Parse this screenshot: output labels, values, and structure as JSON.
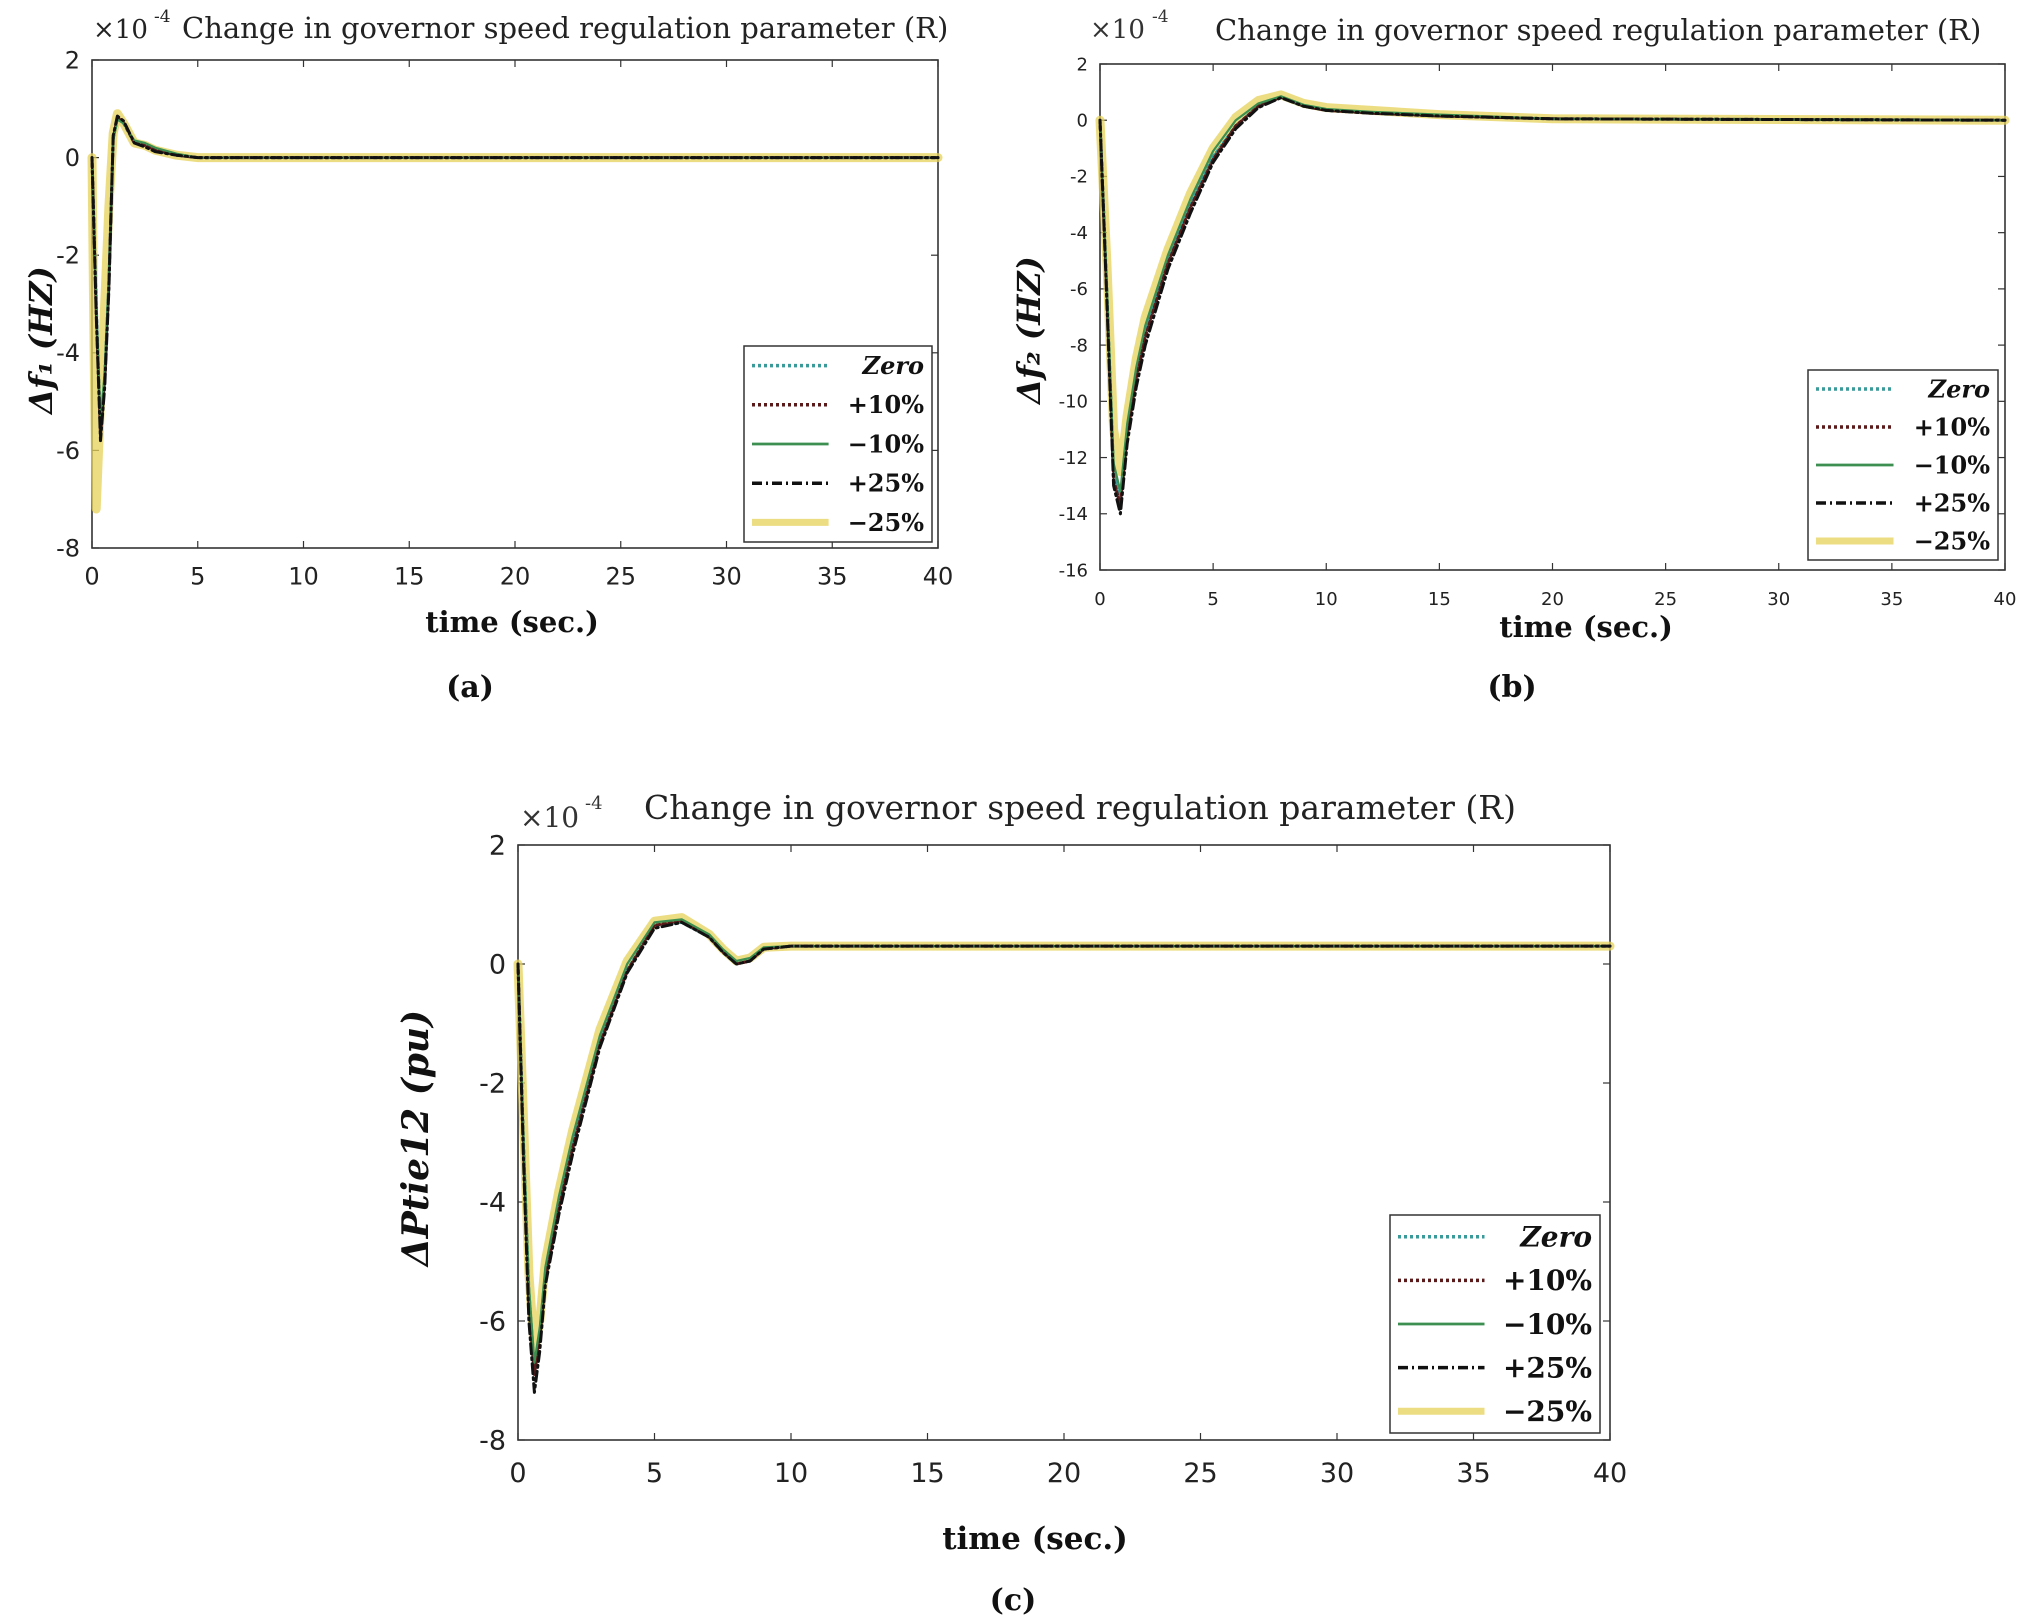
{
  "chart_data": [
    {
      "id": "a",
      "type": "line",
      "title": "Change in governor speed regulation parameter (R)",
      "exponent_prefix": "×10",
      "exponent": "-4",
      "xlabel": "time (sec.)",
      "ylabel": "Δf₁ (HZ)",
      "caption": "(a)",
      "xlim": [
        0,
        40
      ],
      "ylim": [
        -8,
        2
      ],
      "xticks": [
        "0",
        "5",
        "10",
        "15",
        "20",
        "25",
        "30",
        "35",
        "40"
      ],
      "yticks": [
        "2",
        "0",
        "-2",
        "-4",
        "-6",
        "-8"
      ],
      "legend": [
        "Zero",
        "+10%",
        "−10%",
        "+25%",
        "−25%"
      ],
      "series": [
        {
          "name": "Zero",
          "color": "#3a9a9a",
          "style": "dotted",
          "x": [
            0,
            0.2,
            0.4,
            0.6,
            0.8,
            1.0,
            1.2,
            1.5,
            2,
            2.5,
            3,
            4,
            5,
            40
          ],
          "y": [
            0,
            -3,
            -5.6,
            -4.5,
            -2.5,
            0.4,
            0.8,
            0.7,
            0.3,
            0.25,
            0.15,
            0.05,
            0,
            0
          ]
        },
        {
          "name": "+10%",
          "color": "#5a1a1a",
          "style": "dotted",
          "x": [
            0,
            0.2,
            0.4,
            0.6,
            0.8,
            1.0,
            1.2,
            1.5,
            2,
            2.5,
            3,
            4,
            5,
            40
          ],
          "y": [
            0,
            -3.1,
            -5.7,
            -4.6,
            -2.6,
            0.4,
            0.82,
            0.72,
            0.3,
            0.25,
            0.15,
            0.05,
            0,
            0
          ]
        },
        {
          "name": "−10%",
          "color": "#3c8f50",
          "style": "solid",
          "x": [
            0,
            0.2,
            0.4,
            0.6,
            0.8,
            1.0,
            1.2,
            1.5,
            2,
            2.5,
            3,
            4,
            5,
            40
          ],
          "y": [
            0,
            -2.9,
            -5.4,
            -4.4,
            -2.4,
            0.35,
            0.78,
            0.7,
            0.35,
            0.3,
            0.2,
            0.08,
            0,
            0
          ]
        },
        {
          "name": "+25%",
          "color": "#111111",
          "style": "dashdot",
          "x": [
            0,
            0.2,
            0.4,
            0.6,
            0.8,
            1.0,
            1.2,
            1.5,
            2,
            2.5,
            3,
            4,
            5,
            40
          ],
          "y": [
            0,
            -3.2,
            -5.8,
            -4.7,
            -2.7,
            0.45,
            0.85,
            0.75,
            0.3,
            0.22,
            0.12,
            0.05,
            0,
            0
          ]
        },
        {
          "name": "−25%",
          "color": "#e6d25a",
          "style": "thick",
          "x": [
            0,
            0.1,
            0.2,
            0.4,
            0.6,
            0.8,
            1.0,
            1.2,
            1.5,
            2,
            2.5,
            3,
            4,
            5,
            40
          ],
          "y": [
            0,
            -4,
            -7.2,
            -5,
            -3,
            -1,
            0.5,
            0.9,
            0.7,
            0.3,
            0.25,
            0.15,
            0.05,
            0,
            0
          ]
        }
      ]
    },
    {
      "id": "b",
      "type": "line",
      "title": "Change in governor speed regulation parameter (R)",
      "exponent_prefix": "×10",
      "exponent": "-4",
      "xlabel": "time (sec.)",
      "ylabel": "Δf₂ (HZ)",
      "caption": "(b)",
      "xlim": [
        0,
        40
      ],
      "ylim": [
        -16,
        2
      ],
      "xticks": [
        "0",
        "5",
        "10",
        "15",
        "20",
        "25",
        "30",
        "35",
        "40"
      ],
      "yticks": [
        "2",
        "0",
        "-2",
        "-4",
        "-6",
        "-8",
        "-10",
        "-12",
        "-14",
        "-16"
      ],
      "legend": [
        "Zero",
        "+10%",
        "−10%",
        "+25%",
        "−25%"
      ],
      "series": [
        {
          "name": "Zero",
          "color": "#3a9a9a",
          "style": "dotted",
          "x": [
            0,
            0.3,
            0.6,
            0.9,
            1.2,
            1.6,
            2,
            3,
            4,
            5,
            6,
            7,
            8,
            9,
            10,
            12,
            15,
            20,
            40
          ],
          "y": [
            0,
            -6,
            -12.5,
            -13.5,
            -11,
            -9,
            -7.5,
            -5,
            -3,
            -1.3,
            -0.2,
            0.5,
            0.8,
            0.5,
            0.35,
            0.25,
            0.15,
            0.05,
            0
          ]
        },
        {
          "name": "+10%",
          "color": "#5a1a1a",
          "style": "dotted",
          "x": [
            0,
            0.3,
            0.6,
            0.9,
            1.2,
            1.6,
            2,
            3,
            4,
            5,
            6,
            7,
            8,
            9,
            10,
            12,
            15,
            20,
            40
          ],
          "y": [
            0,
            -6.2,
            -12.8,
            -13.7,
            -11.2,
            -9.2,
            -7.7,
            -5.1,
            -3.1,
            -1.4,
            -0.2,
            0.5,
            0.82,
            0.5,
            0.35,
            0.25,
            0.15,
            0.05,
            0
          ]
        },
        {
          "name": "−10%",
          "color": "#3c8f50",
          "style": "solid",
          "x": [
            0,
            0.3,
            0.6,
            0.9,
            1.2,
            1.6,
            2,
            3,
            4,
            5,
            6,
            7,
            8,
            9,
            10,
            12,
            15,
            20,
            40
          ],
          "y": [
            0,
            -5.8,
            -12.2,
            -13.2,
            -10.8,
            -8.8,
            -7.3,
            -4.8,
            -2.8,
            -1.1,
            0,
            0.6,
            0.85,
            0.55,
            0.4,
            0.3,
            0.2,
            0.05,
            0
          ]
        },
        {
          "name": "+25%",
          "color": "#111111",
          "style": "dashdot",
          "x": [
            0,
            0.3,
            0.6,
            0.9,
            1.2,
            1.6,
            2,
            3,
            4,
            5,
            6,
            7,
            8,
            9,
            10,
            12,
            15,
            20,
            40
          ],
          "y": [
            0,
            -6.4,
            -13,
            -14,
            -11.5,
            -9.5,
            -8,
            -5.3,
            -3.3,
            -1.5,
            -0.3,
            0.45,
            0.8,
            0.5,
            0.35,
            0.25,
            0.15,
            0.05,
            0
          ]
        },
        {
          "name": "−25%",
          "color": "#e6d25a",
          "style": "thick",
          "x": [
            0,
            0.3,
            0.6,
            0.9,
            1.2,
            1.6,
            2,
            3,
            4,
            5,
            6,
            7,
            8,
            9,
            10,
            12,
            15,
            20,
            40
          ],
          "y": [
            0,
            -5,
            -11,
            -12.5,
            -10.5,
            -8.5,
            -7,
            -4.6,
            -2.6,
            -1,
            0.1,
            0.7,
            0.9,
            0.6,
            0.45,
            0.35,
            0.2,
            0.05,
            0
          ]
        }
      ]
    },
    {
      "id": "c",
      "type": "line",
      "title": "Change in governor speed regulation parameter (R)",
      "exponent_prefix": "×10",
      "exponent": "-4",
      "xlabel": "time (sec.)",
      "ylabel": "ΔPtie12 (pu)",
      "caption": "(c)",
      "xlim": [
        0,
        40
      ],
      "ylim": [
        -8,
        2
      ],
      "xticks": [
        "0",
        "5",
        "10",
        "15",
        "20",
        "25",
        "30",
        "35",
        "40"
      ],
      "yticks": [
        "2",
        "0",
        "-2",
        "-4",
        "-6",
        "-8"
      ],
      "legend": [
        "Zero",
        "+10%",
        "−10%",
        "+25%",
        "−25%"
      ],
      "series": [
        {
          "name": "Zero",
          "color": "#3a9a9a",
          "style": "dotted",
          "x": [
            0,
            0.2,
            0.4,
            0.6,
            0.8,
            1.0,
            1.5,
            2,
            3,
            4,
            5,
            6,
            7,
            7.5,
            8,
            8.5,
            9,
            10,
            12,
            15,
            40
          ],
          "y": [
            0,
            -3,
            -5.5,
            -6.8,
            -6.2,
            -5.2,
            -4,
            -3,
            -1.3,
            -0.1,
            0.65,
            0.7,
            0.45,
            0.2,
            0,
            0.05,
            0.25,
            0.3,
            0.3,
            0.3,
            0.3
          ]
        },
        {
          "name": "+10%",
          "color": "#5a1a1a",
          "style": "dotted",
          "x": [
            0,
            0.2,
            0.4,
            0.6,
            0.8,
            1.0,
            1.5,
            2,
            3,
            4,
            5,
            6,
            7,
            7.5,
            8,
            8.5,
            9,
            10,
            12,
            15,
            40
          ],
          "y": [
            0,
            -3.1,
            -5.7,
            -6.9,
            -6.3,
            -5.3,
            -4.1,
            -3.1,
            -1.35,
            -0.12,
            0.65,
            0.72,
            0.45,
            0.2,
            0,
            0.05,
            0.25,
            0.3,
            0.3,
            0.3,
            0.3
          ]
        },
        {
          "name": "−10%",
          "color": "#3c8f50",
          "style": "solid",
          "x": [
            0,
            0.2,
            0.4,
            0.6,
            0.8,
            1.0,
            1.5,
            2,
            3,
            4,
            5,
            6,
            7,
            7.5,
            8,
            8.5,
            9,
            10,
            12,
            15,
            40
          ],
          "y": [
            0,
            -2.9,
            -5.4,
            -6.7,
            -6.1,
            -5.1,
            -3.9,
            -2.9,
            -1.2,
            0,
            0.7,
            0.75,
            0.5,
            0.25,
            0.05,
            0.1,
            0.28,
            0.3,
            0.3,
            0.3,
            0.3
          ]
        },
        {
          "name": "+25%",
          "color": "#111111",
          "style": "dashdot",
          "x": [
            0,
            0.2,
            0.4,
            0.6,
            0.8,
            1.0,
            1.5,
            2,
            3,
            4,
            5,
            6,
            7,
            7.5,
            8,
            8.5,
            9,
            10,
            12,
            15,
            40
          ],
          "y": [
            0,
            -3.3,
            -6,
            -7.2,
            -6.5,
            -5.4,
            -4.2,
            -3.2,
            -1.4,
            -0.15,
            0.6,
            0.7,
            0.45,
            0.2,
            0,
            0.05,
            0.25,
            0.3,
            0.3,
            0.3,
            0.3
          ]
        },
        {
          "name": "−25%",
          "color": "#e6d25a",
          "style": "thick",
          "x": [
            0,
            0.2,
            0.4,
            0.6,
            0.8,
            1.0,
            1.5,
            2,
            3,
            4,
            5,
            6,
            7,
            7.5,
            8,
            8.5,
            9,
            10,
            12,
            15,
            40
          ],
          "y": [
            0,
            -2.6,
            -5.2,
            -6.5,
            -6,
            -5,
            -3.8,
            -2.8,
            -1.1,
            0.05,
            0.72,
            0.78,
            0.5,
            0.25,
            0.05,
            0.1,
            0.28,
            0.3,
            0.3,
            0.3,
            0.3
          ]
        }
      ]
    }
  ]
}
